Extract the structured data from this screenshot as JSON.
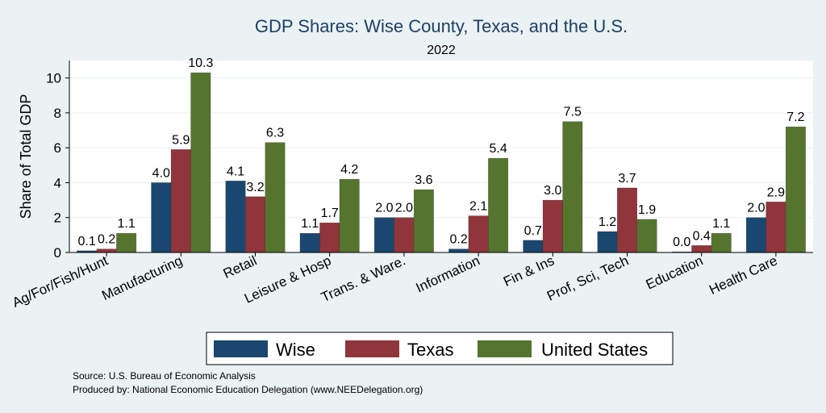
{
  "chart_data": {
    "type": "bar",
    "title": "GDP Shares: Wise County, Texas, and the U.S.",
    "subtitle": "2022",
    "ylabel": "Share of Total GDP",
    "xlabel": "",
    "ylim": [
      0,
      11
    ],
    "yticks": [
      0,
      2,
      4,
      6,
      8,
      10
    ],
    "grid": true,
    "legend_position": "bottom",
    "categories": [
      "Ag/For/Fish/Hunt",
      "Manufacturing",
      "Retail",
      "Leisure & Hosp",
      "Trans. & Ware.",
      "Information",
      "Fin & Ins",
      "Prof, Sci, Tech",
      "Education",
      "Health Care"
    ],
    "series": [
      {
        "name": "Wise",
        "color": "#1a476f",
        "values": [
          0.1,
          4.0,
          4.1,
          1.1,
          2.0,
          0.2,
          0.7,
          1.2,
          0.0,
          2.0
        ],
        "labels": [
          "0.1",
          "4.0",
          "4.1",
          "1.1",
          "2.0",
          "0.2",
          "0.7",
          "1.2",
          "0.0",
          "2.0"
        ]
      },
      {
        "name": "Texas",
        "color": "#90353b",
        "values": [
          0.2,
          5.9,
          3.2,
          1.7,
          2.0,
          2.1,
          3.0,
          3.7,
          0.4,
          2.9
        ],
        "labels": [
          "0.2",
          "5.9",
          "3.2",
          "1.7",
          "2.0",
          "2.1",
          "3.0",
          "3.7",
          "0.4",
          "2.9"
        ]
      },
      {
        "name": "United States",
        "color": "#55752f",
        "values": [
          1.1,
          10.3,
          6.3,
          4.2,
          3.6,
          5.4,
          7.5,
          1.9,
          1.1,
          7.2
        ],
        "labels": [
          "1.1",
          "10.3",
          "6.3",
          "4.2",
          "3.6",
          "5.4",
          "7.5",
          "1.9",
          "1.1",
          "7.2"
        ]
      }
    ]
  },
  "footer": {
    "source": "Source: U.S. Bureau of Economic Analysis",
    "produced_by": "Produced by: National Economic Education Delegation (www.NEEDelegation.org)"
  }
}
